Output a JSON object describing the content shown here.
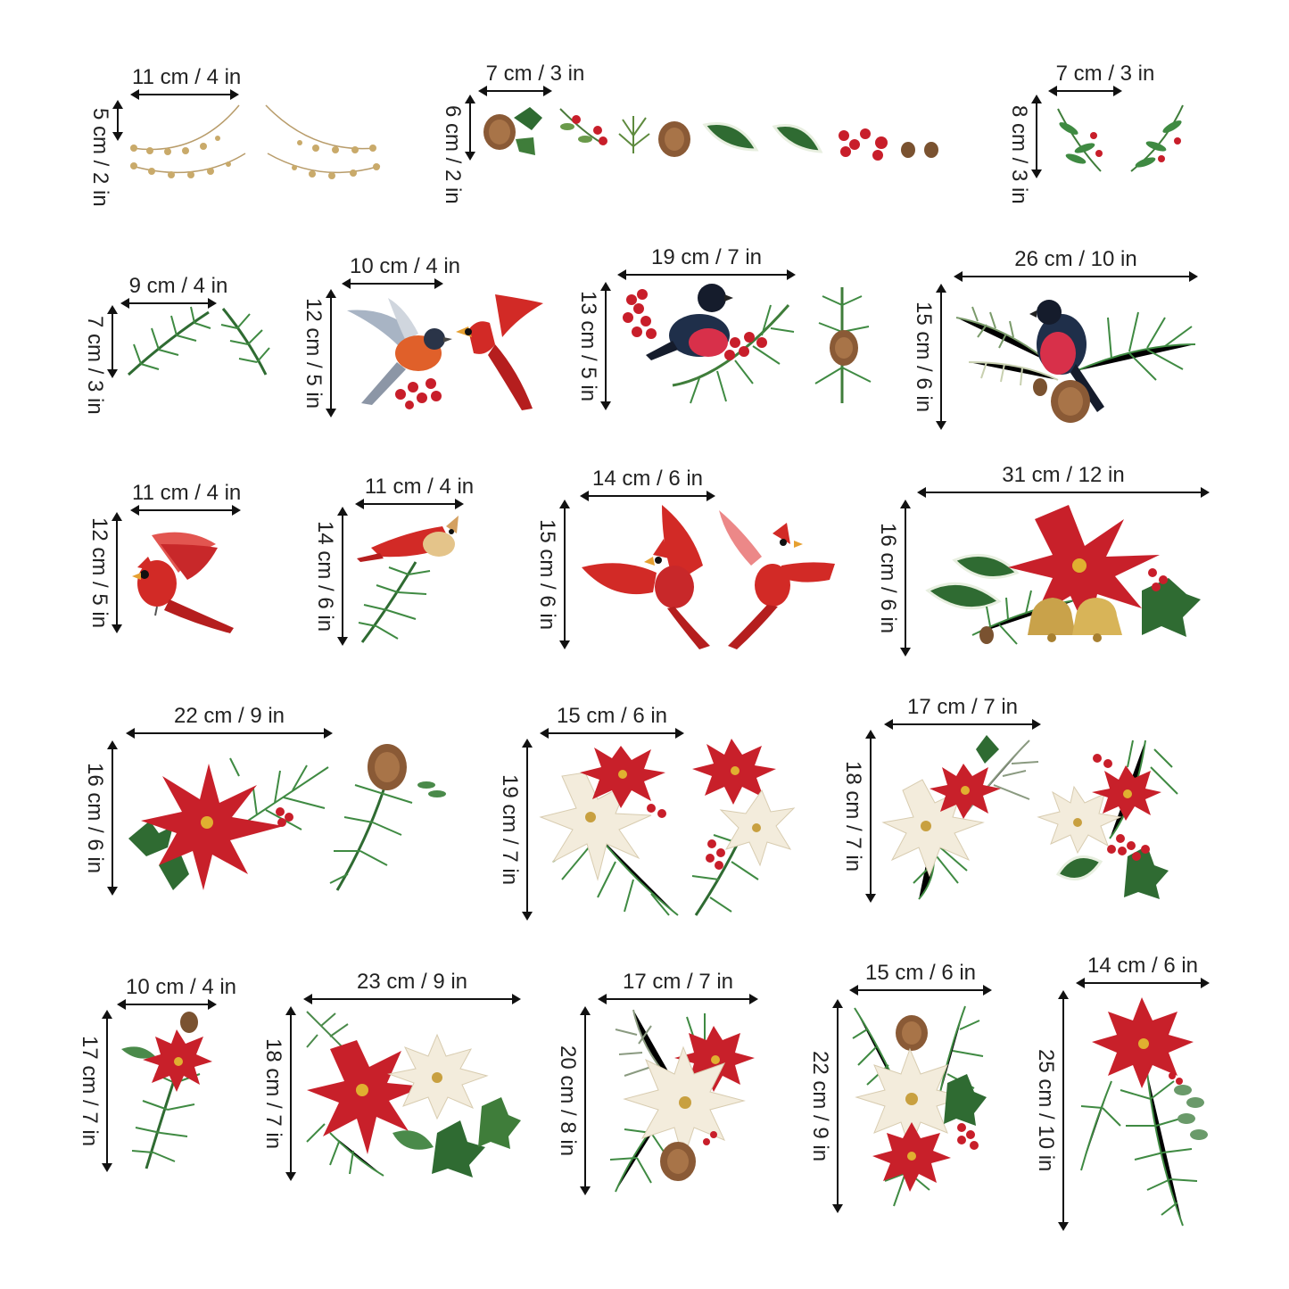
{
  "colors": {
    "poinsettia_red": "#c8202a",
    "poinsettia_white": "#f3ecdc",
    "pine_green": "#3f7d3a",
    "holly_green": "#2f6b32",
    "berry_red": "#c81e2a",
    "cardinal_red": "#d22a26",
    "bullfinch_navy": "#1f2f4a",
    "pinecone_brown": "#8a5a36",
    "bell_gold": "#c9a24a",
    "bead_gold": "#c9aa6a"
  },
  "stickers": [
    {
      "id": "beads",
      "width_label": "11 cm / 4 in",
      "height_label": "5 cm / 2 in",
      "art": "gold-bead-garland-icon"
    },
    {
      "id": "small-elements",
      "width_label": "7 cm / 3 in",
      "height_label": "6 cm / 2 in",
      "art": "pinecone-holly-berries-icon"
    },
    {
      "id": "mistletoe",
      "width_label": "7 cm / 3 in",
      "height_label": "8 cm / 3 in",
      "art": "mistletoe-sprig-icon"
    },
    {
      "id": "pine-sprigs",
      "width_label": "9 cm / 4 in",
      "height_label": "7 cm / 3 in",
      "art": "pine-sprig-icon"
    },
    {
      "id": "robin-cardinal",
      "width_label": "10 cm / 4 in",
      "height_label": "12 cm / 5 in",
      "art": "robin-and-cardinal-icon"
    },
    {
      "id": "bullfinch-berries",
      "width_label": "19 cm / 7 in",
      "height_label": "13 cm / 5 in",
      "art": "bullfinch-on-pine-icon"
    },
    {
      "id": "bullfinch-pinecone",
      "width_label": "26 cm / 10 in",
      "height_label": "15 cm / 6 in",
      "art": "bullfinch-with-pinecone-icon"
    },
    {
      "id": "cardinal-flying",
      "width_label": "11 cm / 4 in",
      "height_label": "12 cm / 5 in",
      "art": "cardinal-flying-icon"
    },
    {
      "id": "cardinal-pine",
      "width_label": "11 cm / 4 in",
      "height_label": "14 cm / 6 in",
      "art": "cardinal-on-pine-icon"
    },
    {
      "id": "cardinal-pair",
      "width_label": "14 cm / 6 in",
      "height_label": "15 cm / 6 in",
      "art": "cardinal-pair-icon"
    },
    {
      "id": "poinsettia-bells",
      "width_label": "31 cm / 12 in",
      "height_label": "16 cm / 6 in",
      "art": "poinsettia-with-bells-icon"
    },
    {
      "id": "poinsettia-holly",
      "width_label": "22 cm / 9 in",
      "height_label": "16 cm / 6 in",
      "art": "poinsettia-holly-pinecone-icon"
    },
    {
      "id": "white-red-pair",
      "width_label": "15 cm / 6 in",
      "height_label": "19 cm / 7 in",
      "art": "white-red-poinsettia-icon"
    },
    {
      "id": "white-red-pair-2",
      "width_label": "17 cm / 7 in",
      "height_label": "18 cm / 7 in",
      "art": "white-red-poinsettia-berries-icon"
    },
    {
      "id": "small-poinsettia",
      "width_label": "10 cm / 4 in",
      "height_label": "17 cm / 7 in",
      "art": "small-poinsettia-icon"
    },
    {
      "id": "red-white-holly",
      "width_label": "23 cm / 9 in",
      "height_label": "18 cm / 7 in",
      "art": "red-white-poinsettia-holly-icon"
    },
    {
      "id": "white-poinsettia-cone",
      "width_label": "17 cm / 7 in",
      "height_label": "20 cm / 8 in",
      "art": "white-poinsettia-pinecone-icon"
    },
    {
      "id": "white-red-tall",
      "width_label": "15 cm / 6 in",
      "height_label": "22 cm / 9 in",
      "art": "white-red-poinsettia-tall-icon"
    },
    {
      "id": "red-poinsettia-tall",
      "width_label": "14 cm / 6 in",
      "height_label": "25 cm / 10 in",
      "art": "red-poinsettia-tall-icon"
    }
  ]
}
